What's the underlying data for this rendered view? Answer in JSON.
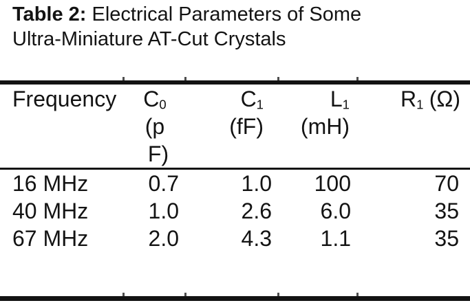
{
  "document": {
    "title": {
      "bold": "Table 2:",
      "line1_rest": " Electrical Parameters of Some",
      "line2": "Ultra-Miniature AT-Cut Crystals"
    }
  },
  "table": {
    "columns": {
      "frequency": {
        "label": "Frequency"
      },
      "c0": {
        "symbol": "C",
        "subscript": "0",
        "unit_line1": "(p",
        "unit_line2": "F)"
      },
      "c1": {
        "symbol": "C",
        "subscript": "1",
        "unit_line1": "(fF)"
      },
      "l1": {
        "symbol": "L",
        "subscript": "1",
        "unit_line1": "(mH)"
      },
      "r1": {
        "symbol": "R",
        "subscript": "1",
        "unit_inline": "(Ω)"
      }
    },
    "rows": [
      {
        "frequency": "16 MHz",
        "c0": "0.7",
        "c1": "1.0",
        "l1": "100",
        "r1": "70"
      },
      {
        "frequency": "40 MHz",
        "c0": "1.0",
        "c1": "2.6",
        "l1": "6.0",
        "r1": "35"
      },
      {
        "frequency": "67 MHz",
        "c0": "2.0",
        "c1": "4.3",
        "l1": "1.1",
        "r1": "35"
      }
    ]
  },
  "colors": {
    "text": "#131313",
    "background": "#ffffff",
    "rule": "#131313"
  }
}
